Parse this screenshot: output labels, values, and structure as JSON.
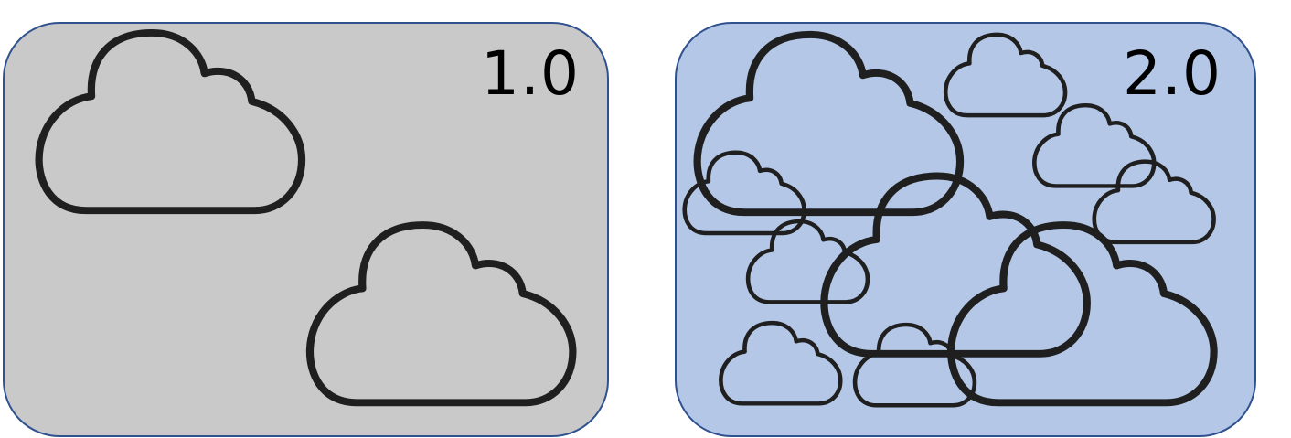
{
  "colors": {
    "border": "#2f528f",
    "cloud_stroke": "#1f1f1f"
  },
  "panels": [
    {
      "label": "1.0",
      "background": "#c9c9c9",
      "clouds": [
        {
          "name": "cloud-large-upper-left",
          "stroke": "thick"
        },
        {
          "name": "cloud-large-lower-right",
          "stroke": "thick"
        }
      ]
    },
    {
      "label": "2.0",
      "background": "#b4c7e7",
      "clouds": [
        {
          "name": "cloud-large-upper-left",
          "stroke": "thick"
        },
        {
          "name": "cloud-large-center",
          "stroke": "thick"
        },
        {
          "name": "cloud-large-lower-right",
          "stroke": "thick"
        },
        {
          "name": "cloud-small-top",
          "stroke": "thin"
        },
        {
          "name": "cloud-small-right-upper",
          "stroke": "thin"
        },
        {
          "name": "cloud-small-right-middle",
          "stroke": "thin"
        },
        {
          "name": "cloud-small-left",
          "stroke": "thin"
        },
        {
          "name": "cloud-small-center-left",
          "stroke": "thin"
        },
        {
          "name": "cloud-small-bottom-left",
          "stroke": "thin"
        },
        {
          "name": "cloud-small-bottom-center",
          "stroke": "thin"
        }
      ]
    }
  ]
}
